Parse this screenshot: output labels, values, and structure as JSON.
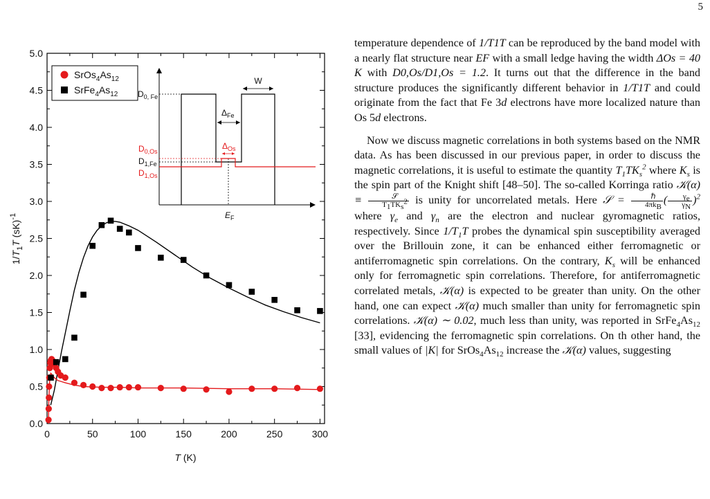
{
  "page_number": "5",
  "figure": {
    "y_axis_label": "1/T1T (sK)-1",
    "x_axis_label": "T (K)",
    "legend": [
      {
        "name": "SrOs4As12",
        "color": "#e41a1c",
        "marker": "circle"
      },
      {
        "name": "SrFe4As12",
        "color": "#000000",
        "marker": "square"
      }
    ],
    "inset_labels": {
      "W": "W",
      "delta_fe": "ΔFe",
      "delta_os": "ΔOs",
      "d0fe": "D0, Fe",
      "d0os": "D0,Os",
      "d1fe": "D1,Fe",
      "d1os": "D1,Os",
      "ef": "EF"
    }
  },
  "chart_data": {
    "type": "scatter",
    "xlabel": "T (K)",
    "ylabel": "1/T1T (sK)-1",
    "xlim": [
      0,
      305
    ],
    "ylim": [
      0,
      5.0
    ],
    "x_ticks": [
      0,
      50,
      100,
      150,
      200,
      250,
      300
    ],
    "y_ticks": [
      0.0,
      0.5,
      1.0,
      1.5,
      2.0,
      2.5,
      3.0,
      3.5,
      4.0,
      4.5,
      5.0
    ],
    "grid": false,
    "legend_position": "top-left",
    "series": [
      {
        "name": "SrOs4As12",
        "color": "#e41a1c",
        "marker": "circle",
        "x": [
          1.6,
          1.8,
          2.0,
          2.2,
          2.5,
          3.0,
          3.5,
          4.0,
          5.0,
          6.0,
          8.0,
          10,
          12,
          15,
          20,
          30,
          40,
          50,
          60,
          70,
          80,
          90,
          100,
          125,
          150,
          175,
          200,
          225,
          250,
          275,
          300
        ],
        "y": [
          0.05,
          0.2,
          0.35,
          0.5,
          0.62,
          0.75,
          0.82,
          0.85,
          0.87,
          0.85,
          0.8,
          0.75,
          0.7,
          0.65,
          0.62,
          0.55,
          0.52,
          0.5,
          0.48,
          0.48,
          0.49,
          0.49,
          0.49,
          0.48,
          0.47,
          0.46,
          0.43,
          0.47,
          0.47,
          0.48,
          0.47
        ]
      },
      {
        "name": "SrFe4As12",
        "color": "#000000",
        "marker": "square",
        "x": [
          4.2,
          10,
          20,
          30,
          40,
          50,
          60,
          70,
          80,
          90,
          100,
          125,
          150,
          175,
          200,
          225,
          250,
          275,
          300
        ],
        "y": [
          0.62,
          0.83,
          0.87,
          1.16,
          1.74,
          2.4,
          2.68,
          2.74,
          2.63,
          2.58,
          2.37,
          2.24,
          2.21,
          2.0,
          1.87,
          1.78,
          1.67,
          1.53,
          1.52
        ]
      }
    ],
    "fit_curves": [
      {
        "for": "SrFe4As12",
        "color": "#000000",
        "x": [
          4,
          8,
          12,
          16,
          20,
          25,
          30,
          35,
          40,
          45,
          50,
          55,
          60,
          65,
          70,
          75,
          80,
          90,
          100,
          120,
          140,
          160,
          180,
          200,
          220,
          240,
          260,
          280,
          300
        ],
        "y": [
          0.25,
          0.45,
          0.72,
          0.98,
          1.22,
          1.52,
          1.8,
          2.04,
          2.24,
          2.4,
          2.52,
          2.61,
          2.67,
          2.71,
          2.73,
          2.73,
          2.72,
          2.67,
          2.61,
          2.45,
          2.28,
          2.11,
          1.96,
          1.83,
          1.71,
          1.6,
          1.51,
          1.43,
          1.36
        ]
      },
      {
        "for": "SrOs4As12",
        "color": "#e41a1c",
        "x": [
          1.5,
          2,
          3,
          4,
          5,
          6,
          8,
          10,
          12,
          15,
          20,
          30,
          40,
          60,
          80,
          100,
          150,
          200,
          250,
          300
        ],
        "y": [
          0.0,
          0.32,
          0.6,
          0.68,
          0.67,
          0.65,
          0.62,
          0.6,
          0.58,
          0.57,
          0.55,
          0.52,
          0.5,
          0.49,
          0.49,
          0.48,
          0.48,
          0.47,
          0.47,
          0.46
        ]
      }
    ]
  },
  "text": {
    "paragraph1": [
      "temperature dependence of ",
      "1/T1T",
      " can be reproduced by the band model with a nearly flat structure near ",
      "EF",
      " with a small ledge having the width ",
      "ΔOs = 40 K",
      " with ",
      "D0,Os/D1,Os = 1.2",
      ". It turns out that the difference in the band structure produces the significantly different behavior in ",
      "1/T1T",
      " and could originate from the fact that Fe 3",
      "d",
      " electrons have more localized nature than Os 5",
      "d",
      " electrons."
    ],
    "paragraph2_a": "Now we discuss magnetic correlations in both systems based on the NMR data. As has been discussed in our previous paper, in order to discuss the magnetic correlations, it is useful to estimate the quantity ",
    "paragraph2_b": " where ",
    "paragraph2_c": " is the spin part of the Knight shift [48–50]. The so-called Korringa ratio ",
    "paragraph2_d": " is unity for uncorrelated metals. Here ",
    "paragraph2_e": " where ",
    "paragraph2_f": " and ",
    "paragraph2_g": " are the electron and nuclear gyromagnetic ratios, respectively. Since ",
    "paragraph2_h": " probes the dynamical spin susceptibility averaged over the Brillouin zone, it can be enhanced either ferromagnetic or antiferromagnetic spin correlations. On the contrary, ",
    "paragraph2_i": " will be enhanced only for ferromagnetic spin correlations. Therefore, for antiferromagnetic correlated metals, ",
    "paragraph2_j": " is expected to be greater than unity. On the other hand, one can expect ",
    "paragraph2_k": " much smaller than unity for ferromagnetic spin correlations. ",
    "paragraph2_l": ", much less than unity, was reported in SrFe",
    "paragraph2_m": "As",
    "paragraph2_n": " [33], evidencing the ferromagnetic spin correlations. On th other hand, the small values of ",
    "paragraph2_o": " for SrOs",
    "paragraph2_p": " increase the ",
    "paragraph2_q": " values, suggesting"
  }
}
